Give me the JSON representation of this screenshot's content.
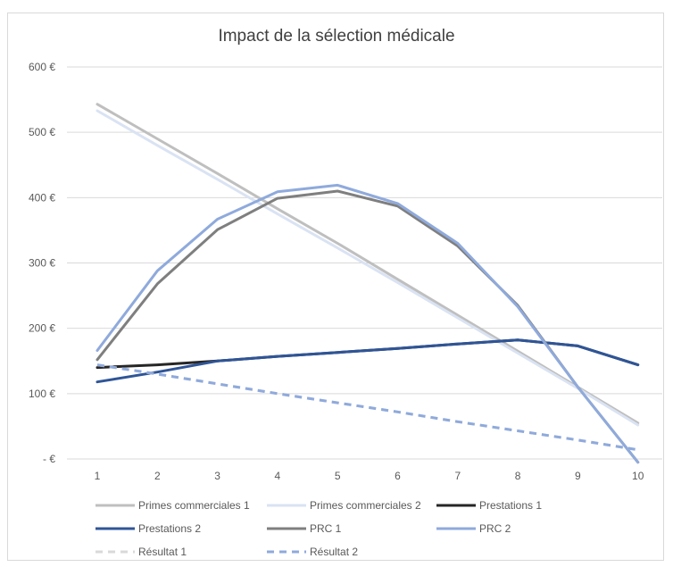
{
  "chart_data": {
    "type": "line",
    "title": "Impact de la sélection médicale",
    "xlabel": "",
    "ylabel": "",
    "categories": [
      "1",
      "2",
      "3",
      "4",
      "5",
      "6",
      "7",
      "8",
      "9",
      "10"
    ],
    "y_ticks": [
      "-  €",
      "100 €",
      "200 €",
      "300 €",
      "400 €",
      "500 €",
      "600 €"
    ],
    "ylim": [
      0,
      600
    ],
    "grid": true,
    "legend_position": "bottom",
    "series": [
      {
        "name": "Primes commerciales 1",
        "color": "#bfbfbf",
        "dash": false,
        "values": [
          543,
          490,
          437,
          383,
          330,
          275,
          220,
          165,
          110,
          55
        ]
      },
      {
        "name": "Primes commerciales 2",
        "color": "#dae3f3",
        "dash": false,
        "values": [
          533,
          480,
          428,
          375,
          323,
          270,
          216,
          162,
          108,
          52
        ]
      },
      {
        "name": "Prestations 1",
        "color": "#262626",
        "dash": false,
        "values": [
          140,
          144,
          150,
          157,
          163,
          169,
          176,
          182,
          173,
          144
        ]
      },
      {
        "name": "Prestations 2",
        "color": "#2f5597",
        "dash": false,
        "values": [
          118,
          133,
          150,
          157,
          163,
          169,
          176,
          182,
          173,
          144
        ]
      },
      {
        "name": "PRC 1",
        "color": "#7f7f7f",
        "dash": false,
        "values": [
          152,
          268,
          351,
          399,
          410,
          387,
          326,
          235,
          110,
          -5
        ]
      },
      {
        "name": "PRC 2",
        "color": "#8faadc",
        "dash": false,
        "values": [
          166,
          288,
          367,
          409,
          419,
          391,
          330,
          233,
          110,
          -5
        ]
      },
      {
        "name": "Résultat 1",
        "color": "#d9d9d9",
        "dash": true,
        "values": [
          144,
          130,
          115,
          100,
          86,
          72,
          57,
          43,
          29,
          14
        ]
      },
      {
        "name": "Résultat 2",
        "color": "#8faadc",
        "dash": true,
        "values": [
          144,
          130,
          115,
          100,
          86,
          72,
          57,
          43,
          29,
          14
        ]
      }
    ]
  }
}
